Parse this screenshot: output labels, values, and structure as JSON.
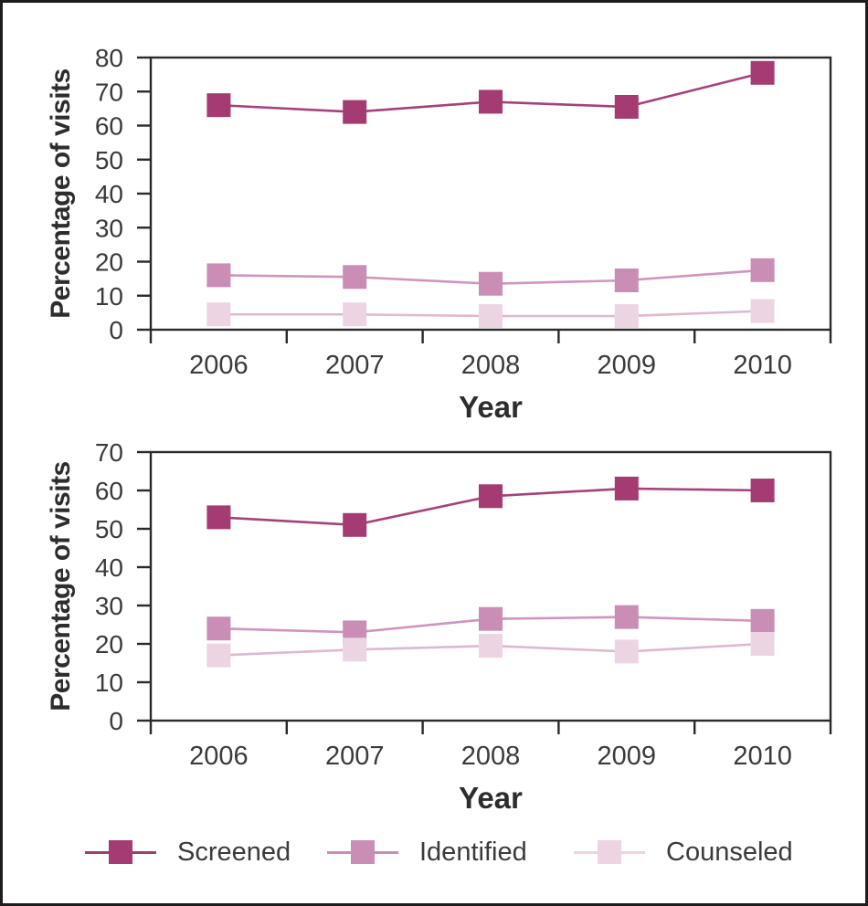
{
  "figure": {
    "background": "#ffffff",
    "border_color": "#1e1c1c"
  },
  "axes": {
    "line_color": "#2b2a29",
    "tick_label_color": "#3c3b3a",
    "title_color": "#2e2d2c"
  },
  "chart_data": [
    {
      "type": "line",
      "panel": "top",
      "xlabel": "Year",
      "ylabel": "Percentage of visits",
      "x": [
        2006,
        2007,
        2008,
        2009,
        2010
      ],
      "ylim": [
        0,
        80
      ],
      "ytick_step": 10,
      "grid": false,
      "marker": "square",
      "series": [
        {
          "name": "Screened",
          "color": "#a43b73",
          "line_color": "#a8407a",
          "values": [
            66,
            64,
            67,
            65.5,
            75.5
          ]
        },
        {
          "name": "Identified",
          "color": "#ca8db6",
          "line_color": "#d194be",
          "values": [
            16,
            15.5,
            13.5,
            14.5,
            17.5
          ]
        },
        {
          "name": "Counseled",
          "color": "#ecd4e3",
          "line_color": "#e0b7d0",
          "values": [
            4.5,
            4.5,
            4,
            4,
            5.5
          ]
        }
      ]
    },
    {
      "type": "line",
      "panel": "bottom",
      "xlabel": "Year",
      "ylabel": "Percentage of visits",
      "x": [
        2006,
        2007,
        2008,
        2009,
        2010
      ],
      "ylim": [
        0,
        70
      ],
      "ytick_step": 10,
      "grid": false,
      "marker": "square",
      "series": [
        {
          "name": "Screened",
          "color": "#a43b73",
          "line_color": "#a8407a",
          "values": [
            53,
            51,
            58.5,
            60.5,
            60
          ]
        },
        {
          "name": "Identified",
          "color": "#ca8db6",
          "line_color": "#d194be",
          "values": [
            24,
            23,
            26.5,
            27,
            26
          ]
        },
        {
          "name": "Counseled",
          "color": "#ecd4e3",
          "line_color": "#e0b7d0",
          "values": [
            17,
            18.5,
            19.5,
            18,
            20
          ]
        }
      ]
    }
  ],
  "legend": {
    "position": "bottom",
    "items": [
      {
        "label": "Screened",
        "color": "#a43b73"
      },
      {
        "label": "Identified",
        "color": "#ca8db6"
      },
      {
        "label": "Counseled",
        "color": "#ecd4e3"
      }
    ]
  }
}
